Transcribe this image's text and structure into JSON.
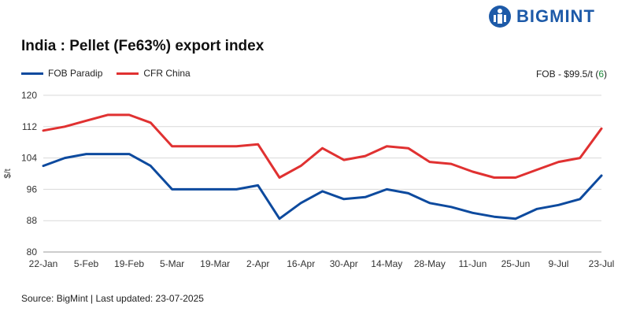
{
  "brand": {
    "name": "BIGMINT",
    "color": "#1d5aa8"
  },
  "source_text": "Source: BigMint | Last updated: 23-07-2025",
  "fob_note": {
    "prefix": "FOB - $99.5/t (",
    "change": "6",
    "suffix": ")"
  },
  "chart_data": {
    "type": "line",
    "title": "India : Pellet (Fe63%) export index",
    "xlabel": "",
    "ylabel": "$/t",
    "ylim": [
      80,
      120
    ],
    "yticks": [
      80,
      88,
      96,
      104,
      112,
      120
    ],
    "grid": true,
    "legend_position": "top-left",
    "x_tick_labels": [
      "22-Jan",
      "5-Feb",
      "19-Feb",
      "5-Mar",
      "19-Mar",
      "2-Apr",
      "16-Apr",
      "30-Apr",
      "14-May",
      "28-May",
      "11-Jun",
      "25-Jun",
      "9-Jul",
      "23-Jul"
    ],
    "x": [
      "22-Jan",
      "29-Jan",
      "5-Feb",
      "12-Feb",
      "19-Feb",
      "26-Feb",
      "5-Mar",
      "12-Mar",
      "19-Mar",
      "26-Mar",
      "2-Apr",
      "9-Apr",
      "16-Apr",
      "23-Apr",
      "30-Apr",
      "7-May",
      "14-May",
      "21-May",
      "28-May",
      "4-Jun",
      "11-Jun",
      "18-Jun",
      "25-Jun",
      "2-Jul",
      "9-Jul",
      "16-Jul",
      "23-Jul"
    ],
    "series": [
      {
        "name": "FOB Paradip",
        "color": "#0d4a9e",
        "values": [
          102,
          104,
          105,
          105,
          105,
          102,
          96,
          96,
          96,
          96,
          97,
          88.5,
          92.5,
          95.5,
          93.5,
          94,
          96,
          95,
          92.5,
          91.5,
          90,
          89,
          88.5,
          91,
          92,
          93.5,
          99.5
        ]
      },
      {
        "name": "CFR China",
        "color": "#e03131",
        "values": [
          111,
          112,
          113.5,
          115,
          115,
          113,
          107,
          107,
          107,
          107,
          107.5,
          99,
          102,
          106.5,
          103.5,
          104.5,
          107,
          106.5,
          103,
          102.5,
          100.5,
          99,
          99,
          101,
          103,
          104,
          111.5
        ]
      }
    ]
  }
}
